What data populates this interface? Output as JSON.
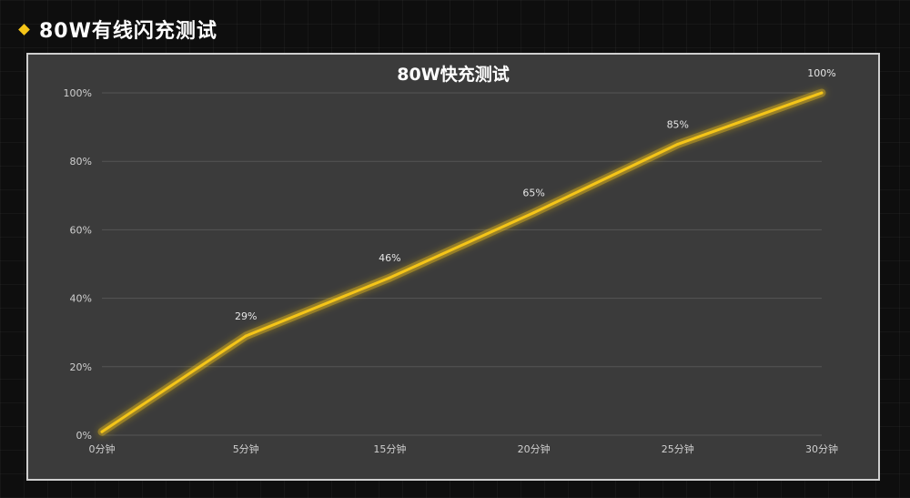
{
  "header": {
    "title": "80W有线闪充测试"
  },
  "colors": {
    "accent": "#f5c518",
    "panel": "#3b3b3b",
    "background": "#0e0e0e"
  },
  "chart_data": {
    "type": "line",
    "title": "80W快充测试",
    "xlabel": "",
    "ylabel": "",
    "categories": [
      "0分钟",
      "5分钟",
      "15分钟",
      "20分钟",
      "25分钟",
      "30分钟"
    ],
    "series": [
      {
        "values": [
          1,
          29,
          46,
          65,
          85,
          100
        ],
        "labels": [
          "",
          "29%",
          "46%",
          "65%",
          "85%",
          "100%"
        ]
      }
    ],
    "y_ticks": [
      "0%",
      "20%",
      "40%",
      "60%",
      "80%",
      "100%"
    ],
    "ylim": [
      0,
      100
    ],
    "grid": true,
    "legend": "none"
  }
}
